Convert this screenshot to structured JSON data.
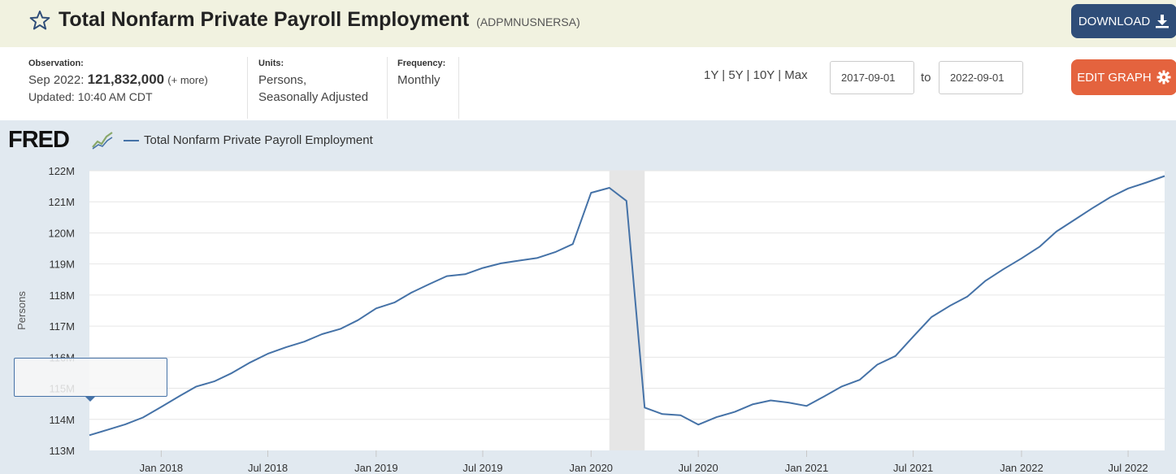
{
  "header": {
    "title": "Total Nonfarm Private Payroll Employment",
    "series_id": "(ADPMNUSNERSA)",
    "download_label": "DOWNLOAD",
    "edit_label": "EDIT GRAPH"
  },
  "info": {
    "observation_label": "Observation:",
    "obs_date": "Sep 2022:",
    "obs_value": "121,832,000",
    "obs_more": "(+ more)",
    "updated": "Updated: 10:40 AM CDT",
    "units_label": "Units:",
    "units_line1": "Persons,",
    "units_line2": "Seasonally Adjusted",
    "frequency_label": "Frequency:",
    "frequency_value": "Monthly"
  },
  "range": {
    "buttons": [
      "1Y",
      "5Y",
      "10Y",
      "Max"
    ],
    "separator": " | ",
    "start": "2017-09-01",
    "end": "2022-09-01",
    "to_label": "to"
  },
  "logo": {
    "text": "FRED"
  },
  "colors": {
    "line": "#4572a7",
    "recession": "#e6e6e6",
    "download": "#2f4d78",
    "edit": "#e4633e"
  },
  "chart_data": {
    "type": "line",
    "title": "",
    "xlabel": "",
    "ylabel": "Persons",
    "series": [
      {
        "name": "Total Nonfarm Private Payroll Employment",
        "x": [
          "2017-09-01",
          "2017-10-01",
          "2017-11-01",
          "2017-12-01",
          "2018-01-01",
          "2018-02-01",
          "2018-03-01",
          "2018-04-01",
          "2018-05-01",
          "2018-06-01",
          "2018-07-01",
          "2018-08-01",
          "2018-09-01",
          "2018-10-01",
          "2018-11-01",
          "2018-12-01",
          "2019-01-01",
          "2019-02-01",
          "2019-03-01",
          "2019-04-01",
          "2019-05-01",
          "2019-06-01",
          "2019-07-01",
          "2019-08-01",
          "2019-09-01",
          "2019-10-01",
          "2019-11-01",
          "2019-12-01",
          "2020-01-01",
          "2020-02-01",
          "2020-03-01",
          "2020-04-01",
          "2020-05-01",
          "2020-06-01",
          "2020-07-01",
          "2020-08-01",
          "2020-09-01",
          "2020-10-01",
          "2020-11-01",
          "2020-12-01",
          "2021-01-01",
          "2021-02-01",
          "2021-03-01",
          "2021-04-01",
          "2021-05-01",
          "2021-06-01",
          "2021-07-01",
          "2021-08-01",
          "2021-09-01",
          "2021-10-01",
          "2021-11-01",
          "2021-12-01",
          "2022-01-01",
          "2022-02-01",
          "2022-03-01",
          "2022-04-01",
          "2022-05-01",
          "2022-06-01",
          "2022-07-01",
          "2022-08-01",
          "2022-09-01"
        ],
        "values": [
          113.49,
          113.66,
          113.84,
          114.06,
          114.4,
          114.75,
          115.05,
          115.22,
          115.49,
          115.83,
          116.11,
          116.32,
          116.5,
          116.74,
          116.91,
          117.19,
          117.57,
          117.76,
          118.07,
          118.35,
          118.61,
          118.67,
          118.87,
          119.02,
          119.11,
          119.19,
          119.38,
          119.64,
          121.29,
          121.45,
          121.03,
          114.38,
          114.17,
          114.13,
          113.83,
          114.07,
          114.24,
          114.48,
          114.61,
          114.54,
          114.43,
          114.75,
          115.05,
          115.27,
          115.76,
          116.04,
          116.66,
          117.29,
          117.65,
          117.95,
          118.46,
          118.83,
          119.18,
          119.56,
          120.04,
          120.42,
          120.79,
          121.15,
          121.43,
          121.62,
          121.83
        ]
      }
    ],
    "value_unit": "millions of persons",
    "ylim": [
      113,
      122
    ],
    "yticks": [
      113,
      114,
      115,
      116,
      117,
      118,
      119,
      120,
      121,
      122
    ],
    "ytick_labels": [
      "113M",
      "114M",
      "115M",
      "116M",
      "117M",
      "118M",
      "119M",
      "120M",
      "121M",
      "122M"
    ],
    "xticks": [
      {
        "date": "2018-01-01",
        "label": "Jan 2018"
      },
      {
        "date": "2018-07-01",
        "label": "Jul 2018"
      },
      {
        "date": "2019-01-01",
        "label": "Jan 2019"
      },
      {
        "date": "2019-07-01",
        "label": "Jul 2019"
      },
      {
        "date": "2020-01-01",
        "label": "Jan 2020"
      },
      {
        "date": "2020-07-01",
        "label": "Jul 2020"
      },
      {
        "date": "2021-01-01",
        "label": "Jan 2021"
      },
      {
        "date": "2021-07-01",
        "label": "Jul 2021"
      },
      {
        "date": "2022-01-01",
        "label": "Jan 2022"
      },
      {
        "date": "2022-07-01",
        "label": "Jul 2022"
      }
    ],
    "recession": {
      "start": "2020-02-01",
      "end": "2020-04-01"
    },
    "grid": true,
    "legend": "top-left"
  }
}
